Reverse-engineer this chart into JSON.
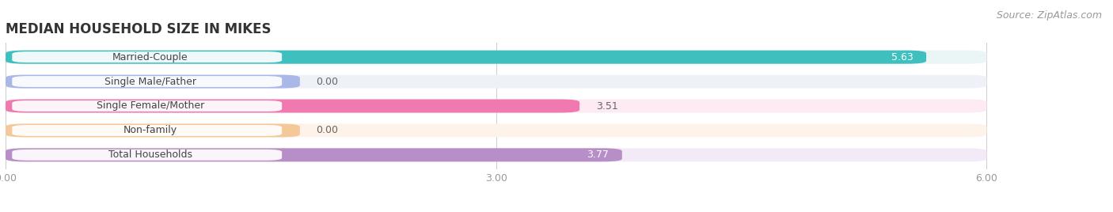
{
  "title": "MEDIAN HOUSEHOLD SIZE IN MIKES",
  "source": "Source: ZipAtlas.com",
  "categories": [
    "Married-Couple",
    "Single Male/Father",
    "Single Female/Mother",
    "Non-family",
    "Total Households"
  ],
  "values": [
    5.63,
    0.0,
    3.51,
    0.0,
    3.77
  ],
  "bar_colors": [
    "#40bfbf",
    "#aab8e8",
    "#f07ab0",
    "#f5c89a",
    "#b88ec8"
  ],
  "bar_bg_colors": [
    "#eaf5f5",
    "#eef1f8",
    "#fdeaf3",
    "#fdf3e8",
    "#f3eaf7"
  ],
  "value_label_colors": [
    "white",
    "#666666",
    "#666666",
    "#666666",
    "white"
  ],
  "value_label_inside": [
    true,
    false,
    false,
    false,
    true
  ],
  "xlim": [
    0,
    6.0
  ],
  "xticks": [
    0.0,
    3.0,
    6.0
  ],
  "xtick_labels": [
    "0.00",
    "3.00",
    "6.00"
  ],
  "value_labels": [
    "5.63",
    "0.00",
    "3.51",
    "0.00",
    "3.77"
  ],
  "title_fontsize": 12,
  "label_fontsize": 9,
  "tick_fontsize": 9,
  "source_fontsize": 9,
  "background_color": "#ffffff",
  "plot_bg_color": "#f5f5f7"
}
